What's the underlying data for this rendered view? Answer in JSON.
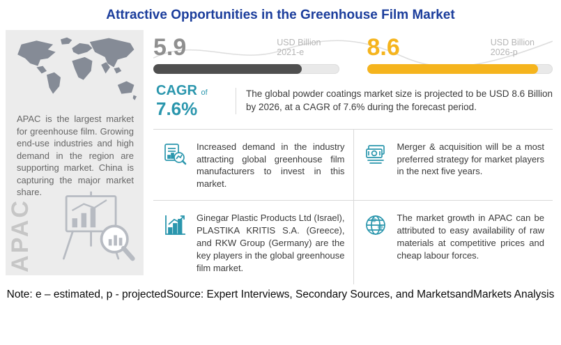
{
  "title": "Attractive Opportunities in the Greenhouse Film Market",
  "colors": {
    "title_color": "#1c3e9c",
    "teal": "#2a96ad",
    "gray_value": "#8f8f8f",
    "dark_bar": "#4f4f4f",
    "yellow": "#f5b41d",
    "panel_bg": "#ececec",
    "muted_label": "#b5b5b5",
    "body_text": "#3a3a3a",
    "divider": "#d8d8d8"
  },
  "left_panel": {
    "text": "APAC is the largest market for greenhouse film. Growing end-use industries and high demand in the region are supporting market. China is capturing the major market share.",
    "watermark": "APAC"
  },
  "stats": {
    "current": {
      "value": "5.9",
      "unit": "USD Billion",
      "period": "2021-e",
      "fill_percent": 80
    },
    "projected": {
      "value": "8.6",
      "unit": "USD Billion",
      "period": "2026-p",
      "fill_percent": 92
    }
  },
  "cagr": {
    "prefix": "CAGR",
    "of": "of",
    "value": "7.6%"
  },
  "summary": "The global powder coatings market size is projected to be USD 8.6 Billion by 2026, at a CAGR of 7.6% during the forecast period.",
  "insights": [
    {
      "icon": "chart-magnifier-icon",
      "text": "Increased demand in the industry attracting global greenhouse film manufacturers to invest in this market."
    },
    {
      "icon": "money-icon",
      "text": "Merger & acquisition will be a most preferred strategy for market players in the next five years."
    },
    {
      "icon": "growth-chart-icon",
      "text": "Ginegar Plastic Products Ltd (Israel), PLASTIKA KRITIS S.A. (Greece), and RKW Group (Germany) are the key players in the global greenhouse film market."
    },
    {
      "icon": "globe-icon",
      "text": "The market growth in APAC can be attributed to easy availability of raw materials at competitive prices and cheap labour forces."
    }
  ],
  "note": "Note: e – estimated, p - projected",
  "source": "Source: Expert Interviews, Secondary Sources, and MarketsandMarkets Analysis"
}
